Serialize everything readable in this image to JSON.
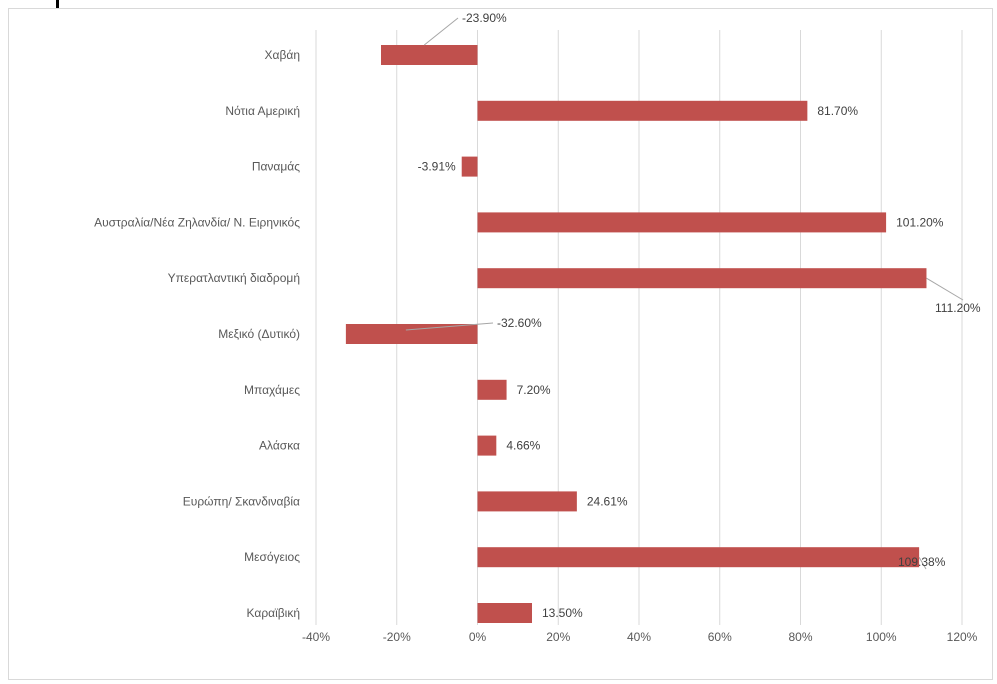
{
  "chart_data": {
    "type": "bar",
    "orientation": "horizontal",
    "categories": [
      "Χαβάη",
      "Νότια Αμερική",
      "Παναμάς",
      "Αυστραλία/Νέα Ζηλανδία/ Ν. Ειρηνικός",
      "Υπερατλαντική διαδρομή",
      "Μεξικό (Δυτικό)",
      "Μπαχάμες",
      "Αλάσκα",
      "Ευρώπη/ Σκανδιναβία",
      "Μεσόγειος",
      "Καραϊβική"
    ],
    "values": [
      -23.9,
      81.7,
      -3.91,
      101.2,
      111.2,
      -32.6,
      7.2,
      4.66,
      24.61,
      109.38,
      13.5
    ],
    "data_labels": [
      "-23.90%",
      "81.70%",
      "-3.91%",
      "101.20%",
      "111.20%",
      "-32.60%",
      "7.20%",
      "4.66%",
      "24.61%",
      "109.38%",
      "13.50%"
    ],
    "xlim": [
      -40,
      120
    ],
    "x_ticks": [
      -40,
      -20,
      0,
      20,
      40,
      60,
      80,
      100,
      120
    ],
    "x_tick_labels": [
      "-40%",
      "-20%",
      "0%",
      "20%",
      "40%",
      "60%",
      "80%",
      "100%",
      "120%"
    ],
    "title": "",
    "xlabel": "",
    "ylabel": "",
    "grid": "vertical",
    "bar_color": "#c0504d",
    "grid_color": "#d9d9d9",
    "legend": "none"
  }
}
